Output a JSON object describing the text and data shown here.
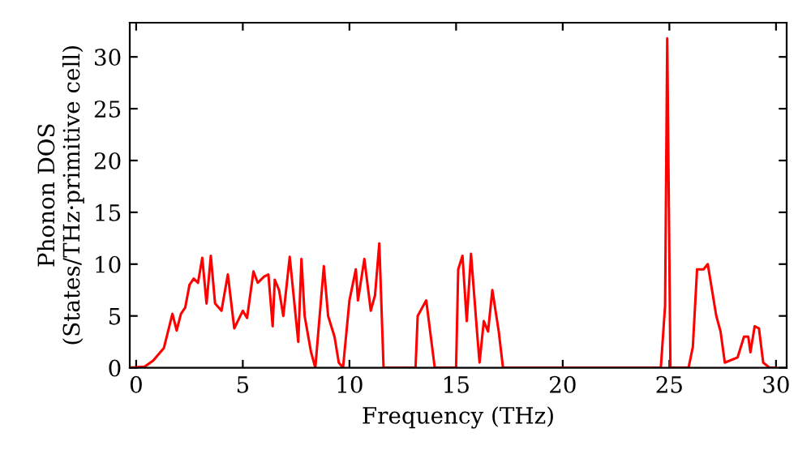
{
  "chart_data": {
    "type": "line",
    "xlabel": "Frequency (THz)",
    "ylabel": "Phonon DOS\n(States/THz·primitive cell)",
    "xlim": [
      -0.3,
      30.5
    ],
    "ylim": [
      0,
      33.3
    ],
    "xticks": [
      0,
      5,
      10,
      15,
      20,
      25,
      30
    ],
    "yticks": [
      0,
      5,
      10,
      15,
      20,
      25,
      30
    ],
    "grid": false,
    "marker": "none",
    "line_style": "solid",
    "series": [
      {
        "color": "#ff0000",
        "x": [
          -0.3,
          0.4,
          0.8,
          1.3,
          1.7,
          1.9,
          2.1,
          2.3,
          2.5,
          2.7,
          2.9,
          3.1,
          3.3,
          3.5,
          3.7,
          4.0,
          4.3,
          4.6,
          5.0,
          5.2,
          5.5,
          5.7,
          6.0,
          6.2,
          6.4,
          6.5,
          6.7,
          6.9,
          7.2,
          7.6,
          7.75,
          7.9,
          8.2,
          8.4,
          8.8,
          9.0,
          9.3,
          9.5,
          9.7,
          10.0,
          10.3,
          10.4,
          10.7,
          11.0,
          11.2,
          11.4,
          11.6,
          13.1,
          13.2,
          13.6,
          14.0,
          15.0,
          15.1,
          15.3,
          15.5,
          15.7,
          16.0,
          16.1,
          16.3,
          16.5,
          16.7,
          17.0,
          17.2,
          24.6,
          24.8,
          24.9,
          25.05,
          25.9,
          26.1,
          26.3,
          26.6,
          26.8,
          27.2,
          27.4,
          27.6,
          28.2,
          28.5,
          28.7,
          28.8,
          29.0,
          29.2,
          29.4,
          29.7,
          30.0
        ],
        "values": [
          0,
          0.1,
          0.7,
          1.9,
          5.2,
          3.6,
          5.2,
          5.8,
          8.0,
          8.6,
          8.2,
          10.6,
          6.2,
          10.8,
          6.2,
          5.5,
          9.0,
          3.8,
          5.5,
          4.8,
          9.3,
          8.2,
          8.8,
          9.0,
          4.0,
          8.5,
          7.5,
          5.0,
          10.7,
          2.5,
          10.5,
          5.0,
          1.5,
          0,
          9.8,
          5.0,
          3.0,
          0.5,
          0,
          6.5,
          9.5,
          6.5,
          10.5,
          5.5,
          7.0,
          12.0,
          0,
          0,
          5.0,
          6.5,
          0,
          0,
          9.5,
          10.8,
          4.5,
          11.0,
          3.0,
          0.5,
          4.5,
          3.5,
          7.5,
          3.5,
          0,
          0,
          6.0,
          31.8,
          0,
          0,
          2.0,
          9.5,
          9.5,
          10.0,
          5.0,
          3.5,
          0.5,
          1.0,
          3.0,
          3.0,
          1.5,
          4.0,
          3.8,
          0.5,
          0,
          0
        ]
      }
    ]
  }
}
